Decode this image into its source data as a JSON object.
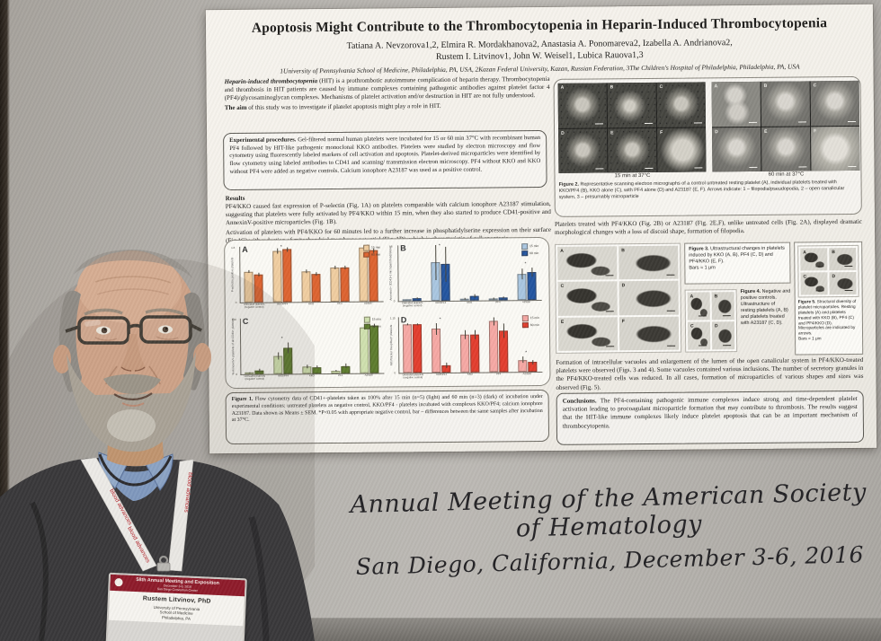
{
  "scene": {
    "caption_line1": "Annual Meeting of the American Society of Hematology",
    "caption_line2": "San Diego, California, December 3-6, 2016"
  },
  "lanyard_text": "blood advances",
  "badge": {
    "header": "58th Annual Meeting and Exposition",
    "header_sub1": "December 3-6, 2016",
    "header_sub2": "San Diego Convention Center",
    "name": "Rustem Litvinov, PhD",
    "org1": "University of Pennsylvania",
    "org2": "School of Medicine",
    "org3": "Philadelphia, PA"
  },
  "poster": {
    "title": "Apoptosis Might Contribute to the Thrombocytopenia in Heparin-Induced Thrombocytopenia",
    "authors_line1": "Tatiana A. Nevzorova1,2, Elmira R. Mordakhanova2, Anastasia A. Ponomareva2, Izabella A. Andrianova2,",
    "authors_line2": "Rustem I. Litvinov1, John W. Weisel1, Lubica Rauova1,3",
    "affiliations": "1University of Pennsylvania School of Medicine, Philadelphia, PA, USA, 2Kazan Federal University, Kazan, Russian Federation, 3The Children's Hospital of Philadelphia, Philadelphia, PA, USA",
    "intro_bold": "Heparin-induced thrombocytopenia",
    "intro_text": " (HIT) is a prothrombotic autoimmune complication of heparin therapy. Thrombocytopenia and thrombosis in HIT patients are caused by immune complexes containing pathogenic antibodies against platelet factor 4 (PF4)/glycosaminoglycan complexes. Mechanisms of platelet activation and/or destruction in HIT are not fully understood.",
    "aim_bold": "The aim",
    "aim_text": " of this study was to investigate if platelet apoptosis might play a role in HIT.",
    "procedures_bold": "Experimental procedures.",
    "procedures_text": " Gel-filtered normal human platelets were incubated for 15 or 60 min 37°C with recombinant human PF4 followed by HIT-like pathogenic monoclonal KKO antibodies. Platelets were studied by electron microscopy and flow cytometry using fluorescently labeled markers of cell activation and apoptosis. Platelet-derived microparticles were identified by flow cytometry using labeled antibodies to CD41 and scanning/ transmission electron microscopy. PF4 without KKO and KKO without PF4 were added as negative controls. Calcium ionophore A23187 was used as a positive control.",
    "results_heading": "Results",
    "results_p1": "PF4/KKO caused fast expression of P-selectin (Fig. 1A) on platelets comparable with calcium ionophore A23187 stimulation, suggesting that platelets were fully activated by PF4/KKO within 15 min, when they also started to produce CD41-positive and AnnexinV-positive microparticles (Fig. 1B).",
    "results_p2": "Activation of platelets with PF4/KKO for 60 minutes led to a further increase in phosphatidylserine expression on their surface (Fig.1C) with reduction of mitochondrial membrane potential (Fig. 1D), which is characteristic of cell apoptosis.",
    "fig1_caption_bold": "Figure 1.",
    "fig1_caption_text": " Flow cytometry data of CD41+-platelets taken as 100% after 15 min (n=5) (light) and 60 min (n=3) (dark) of incubation under experimental conditions: untreated platelets as negative control, KKO/PF4 - platelets incubated with complexes KKO/PF4; calcium ionophore A23187. Data shown as Means ± SEM. *P<0.05 with appropriate negative control, bar – differences between the same samples after incubation at 37°C.",
    "fig2_label_left": "15 min at 37°C",
    "fig2_label_right": "60 min at 37°C",
    "fig2_caption_bold": "Figure 2.",
    "fig2_caption_text": " Representative scanning electron micrographs of a control untreated resting platelet (A), individual platelets treated with KKO/PF4 (B), KKO alone (C), with PF4 alone (D) and A23187 (E, F). Arrows indicate: 1 – filopodia/pseudopodia, 2 – open canalicular system, 3 – presumably microparticle",
    "para_platelets": "Platelets treated with PF4/KKO (Fig. 2B) or A23187 (Fig. 2E,F), unlike untreated cells (Fig. 2A), displayed dramatic morphological changes with a loss of discoid shape, formation of filopodia.",
    "fig3_caption_bold": "Figure 3.",
    "fig3_caption_text": " Ultrastructural changes in platelets induced by KKO (A, B), PF4 (C, D) and PF4/KKO (E, F).",
    "fig3_caption_bars": "Bars = 1 μm",
    "fig4_caption_bold": "Figure 4.",
    "fig4_caption_text": " Negative and positive controls. Ultrastructure of resting platelets (A, B) and platelets treated with A23187 (C, D).",
    "fig5_caption_bold": "Figure 5.",
    "fig5_caption_text": " Structural diversity of platelet microparticles. Resting platelets (A) and platelets treated with KKO (B), PF4 (C) and PF4/KKO (D). Microparticles are indicated by arrows.",
    "fig5_caption_bars": "Bars = 1 μm",
    "para_formation": "Formation of intracellular vacuoles and enlargement of the lumen of the open canalicular system in PF4/KKO-treated platelets were observed (Figs. 3 and 4). Some vacuoles contained various inclusions. The number of secretory granules in the PF4/KKO-treated cells was reduced. In all cases, formation of microparticles of various shapes and sizes was observed (Fig. 5).",
    "conclusions_bold": "Conclusions.",
    "conclusions_text": " The PF4-containing pathogenic immune complexes induce strong and time-dependent platelet activation leading to procoagulant microparticle formation that may contribute to thrombosis. The results suggest that the HIT-like immune complexes likely induce platelet apoptosis that can be an important mechanism of thrombocytopenia."
  },
  "grids": {
    "fig2_left": [
      "A",
      "B",
      "C",
      "D",
      "E",
      "F"
    ],
    "fig2_right": [
      "A",
      "B",
      "C",
      "D",
      "E",
      "F"
    ],
    "fig3": [
      "A",
      "B",
      "C",
      "D",
      "E",
      "F"
    ],
    "fig4": [
      "A",
      "B",
      "C",
      "D"
    ],
    "fig5": [
      "A",
      "B",
      "C",
      "D"
    ]
  },
  "chart_data": [
    {
      "panel": "A",
      "type": "bar",
      "ylabel": "P-selectin positive platelets",
      "ylim": [
        0,
        1.8
      ],
      "categories": [
        "Untreated platelets (negative control)",
        "KKO/PF4",
        "KKO",
        "PF4",
        "A23187"
      ],
      "series": [
        {
          "name": "15 min",
          "color": "#f0cda0",
          "values": [
            1.0,
            1.65,
            1.0,
            1.1,
            1.75
          ],
          "err": [
            0.05,
            0.08,
            0.06,
            0.05,
            0.06
          ]
        },
        {
          "name": "60 min",
          "color": "#dd6330",
          "values": [
            0.9,
            1.7,
            0.9,
            1.1,
            1.65
          ],
          "err": [
            0.06,
            0.07,
            0.07,
            0.06,
            0.07
          ]
        }
      ],
      "sig_categories": [
        "KKO/PF4",
        "A23187"
      ],
      "legend_position": "top-right",
      "grid": false
    },
    {
      "panel": "B",
      "type": "bar",
      "ylabel": "AnnexinV+ (CD41+) microparticles/platelet",
      "ylim": [
        0,
        16
      ],
      "categories": [
        "Untreated platelets (negative control)",
        "KKO/PF4",
        "KKO",
        "PF4",
        "A23187"
      ],
      "series": [
        {
          "name": "15 min",
          "color": "#a9c6e0",
          "values": [
            0.3,
            11,
            0.5,
            0.5,
            7.5
          ],
          "err": [
            0.1,
            5,
            0.2,
            0.2,
            1.5
          ]
        },
        {
          "name": "60 min",
          "color": "#2355a0",
          "values": [
            0.8,
            10.5,
            1.2,
            0.8,
            8
          ],
          "err": [
            0.3,
            5,
            0.5,
            0.3,
            1.2
          ]
        }
      ],
      "sig_categories": [
        "KKO/PF4",
        "A23187"
      ],
      "legend_position": "top-right",
      "grid": false
    },
    {
      "panel": "C",
      "type": "bar",
      "ylabel": "% AnnexinV+ platelets of all CD41+ platelets",
      "ylim": [
        0,
        100
      ],
      "categories": [
        "Untreated platelets (negative control)",
        "KKO/PF4",
        "KKO",
        "PF4",
        "A23187"
      ],
      "series": [
        {
          "name": "15 min",
          "color": "#cfe0ae",
          "values": [
            3,
            32,
            13,
            5,
            82
          ],
          "err": [
            1,
            6,
            3,
            2,
            3
          ]
        },
        {
          "name": "60 min",
          "color": "#5d7c2e",
          "values": [
            7,
            47,
            12,
            13,
            85
          ],
          "err": [
            3,
            10,
            3,
            4,
            3
          ]
        }
      ],
      "sig_categories": [
        "KKO/PF4",
        "A23187"
      ],
      "legend_position": "top-right",
      "grid": false
    },
    {
      "panel": "D",
      "type": "bar",
      "ylabel": "Mito'tracker DeepRed+ platelets",
      "ylim": [
        0,
        1.15
      ],
      "categories": [
        "Untreated platelets (negative control)",
        "KKO/PF4",
        "KKO",
        "PF4",
        "A23187"
      ],
      "series": [
        {
          "name": "15 min",
          "color": "#f6a8a4",
          "values": [
            1.0,
            0.9,
            0.78,
            1.05,
            0.25
          ],
          "err": [
            0.02,
            0.12,
            0.1,
            0.08,
            0.06
          ]
        },
        {
          "name": "60 min",
          "color": "#e23d2e",
          "values": [
            1.0,
            0.15,
            0.78,
            0.85,
            0.2
          ],
          "err": [
            0.02,
            0.05,
            0.1,
            0.15,
            0.05
          ]
        }
      ],
      "sig_categories": [
        "KKO/PF4",
        "A23187"
      ],
      "legend_position": "top-right",
      "grid": false
    }
  ]
}
